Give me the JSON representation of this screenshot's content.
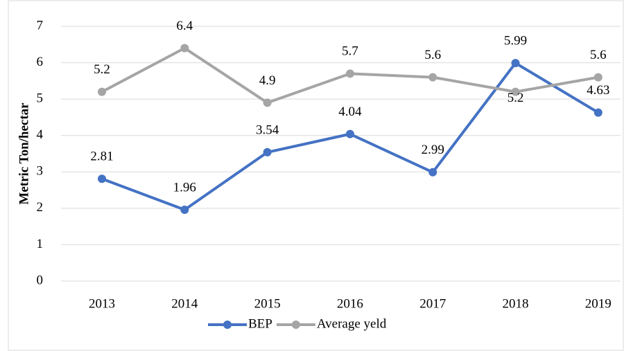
{
  "chart_data": {
    "type": "line",
    "y_label": "Metric Ton/hectar",
    "categories": [
      "2013",
      "2014",
      "2015",
      "2016",
      "2017",
      "2018",
      "2019"
    ],
    "series": [
      {
        "name": "BEP",
        "color": "#4472c4",
        "values": [
          2.81,
          1.96,
          3.54,
          4.04,
          2.99,
          5.99,
          4.63
        ]
      },
      {
        "name": "Average yeld",
        "color": "#a5a5a5",
        "values": [
          5.2,
          6.4,
          4.9,
          5.7,
          5.6,
          5.2,
          5.6
        ]
      }
    ],
    "ylim": [
      0,
      7
    ],
    "yticks": [
      0,
      1,
      2,
      3,
      4,
      5,
      6,
      7
    ],
    "grid": true,
    "legend": "bottom"
  }
}
